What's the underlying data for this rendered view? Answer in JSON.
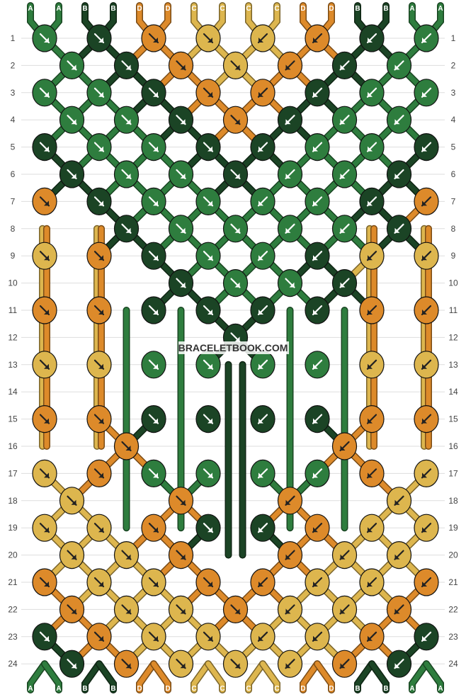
{
  "colors": {
    "A": "#2e7d3e",
    "B": "#1b4425",
    "C": "#ddb64e",
    "D": "#dd8a2a"
  },
  "strands": [
    "A",
    "A",
    "B",
    "B",
    "D",
    "D",
    "C",
    "C",
    "C",
    "C",
    "D",
    "D",
    "B",
    "B",
    "A",
    "A"
  ],
  "rows": [
    "1",
    "2",
    "3",
    "4",
    "5",
    "6",
    "7",
    "8",
    "9",
    "10",
    "11",
    "12",
    "13",
    "14",
    "15",
    "16",
    "17",
    "18",
    "19",
    "20",
    "21",
    "22",
    "23",
    "24"
  ],
  "watermark": "BRACELETBOOK.COM",
  "knots": [
    [
      [
        "A",
        "r"
      ],
      [
        "B",
        "r"
      ],
      [
        "D",
        "r"
      ],
      [
        "C",
        "r"
      ],
      [
        "C",
        "l"
      ],
      [
        "D",
        "l"
      ],
      [
        "B",
        "l"
      ],
      [
        "A",
        "l"
      ]
    ],
    [
      [
        "A",
        "r"
      ],
      [
        "B",
        "r"
      ],
      [
        "D",
        "r"
      ],
      [
        "C",
        "r"
      ],
      [
        "D",
        "l"
      ],
      [
        "B",
        "l"
      ],
      [
        "A",
        "l"
      ]
    ],
    [
      [
        "A",
        "r"
      ],
      [
        "A",
        "r"
      ],
      [
        "B",
        "r"
      ],
      [
        "D",
        "r"
      ],
      [
        "D",
        "l"
      ],
      [
        "B",
        "l"
      ],
      [
        "A",
        "l"
      ],
      [
        "A",
        "l"
      ]
    ],
    [
      [
        "A",
        "r"
      ],
      [
        "A",
        "r"
      ],
      [
        "B",
        "r"
      ],
      [
        "D",
        "r"
      ],
      [
        "B",
        "l"
      ],
      [
        "A",
        "l"
      ],
      [
        "A",
        "l"
      ]
    ],
    [
      [
        "B",
        "r"
      ],
      [
        "A",
        "r"
      ],
      [
        "A",
        "r"
      ],
      [
        "B",
        "r"
      ],
      [
        "B",
        "l"
      ],
      [
        "A",
        "l"
      ],
      [
        "A",
        "l"
      ],
      [
        "B",
        "l"
      ]
    ],
    [
      [
        "B",
        "r"
      ],
      [
        "A",
        "r"
      ],
      [
        "A",
        "r"
      ],
      [
        "B",
        "r"
      ],
      [
        "A",
        "l"
      ],
      [
        "A",
        "l"
      ],
      [
        "B",
        "l"
      ]
    ],
    [
      [
        "D",
        "r"
      ],
      [
        "B",
        "r"
      ],
      [
        "A",
        "r"
      ],
      [
        "A",
        "r"
      ],
      [
        "A",
        "l"
      ],
      [
        "A",
        "l"
      ],
      [
        "B",
        "l"
      ],
      [
        "D",
        "l"
      ]
    ],
    [
      [
        "B",
        "r"
      ],
      [
        "A",
        "r"
      ],
      [
        "A",
        "r"
      ],
      [
        "A",
        "l"
      ],
      [
        "A",
        "l"
      ],
      [
        "B",
        "l"
      ]
    ],
    [
      [
        "C",
        "r"
      ],
      [
        "D",
        "r"
      ],
      [
        "B",
        "r"
      ],
      [
        "A",
        "r"
      ],
      [
        "A",
        "l"
      ],
      [
        "B",
        "l"
      ],
      [
        "C",
        "l"
      ],
      [
        "C",
        "l"
      ]
    ],
    [
      [
        "B",
        "r"
      ],
      [
        "A",
        "r"
      ],
      [
        "A",
        "r"
      ],
      [
        "B",
        "l"
      ]
    ],
    [
      [
        "D",
        "r"
      ],
      [
        "D",
        "r"
      ],
      [
        "B",
        "r"
      ],
      [
        "B",
        "r"
      ],
      [
        "B",
        "l"
      ],
      [
        "B",
        "l"
      ],
      [
        "D",
        "l"
      ],
      [
        "D",
        "l"
      ]
    ],
    [
      [
        "B",
        "r"
      ]
    ],
    [
      [
        "C",
        "r"
      ],
      [
        "C",
        "r"
      ],
      [
        "A",
        "r"
      ],
      [
        "A",
        "r"
      ],
      [
        "A",
        "l"
      ],
      [
        "A",
        "l"
      ],
      [
        "C",
        "l"
      ],
      [
        "C",
        "l"
      ]
    ],
    [],
    [
      [
        "D",
        "r"
      ],
      [
        "D",
        "r"
      ],
      [
        "B",
        "r"
      ],
      [
        "B",
        "r"
      ],
      [
        "B",
        "l"
      ],
      [
        "B",
        "l"
      ],
      [
        "D",
        "l"
      ],
      [
        "D",
        "l"
      ]
    ],
    [
      [
        "D",
        "r"
      ],
      [
        "D",
        "l"
      ]
    ],
    [
      [
        "C",
        "r"
      ],
      [
        "D",
        "r"
      ],
      [
        "A",
        "r"
      ],
      [
        "A",
        "r"
      ],
      [
        "A",
        "l"
      ],
      [
        "A",
        "l"
      ],
      [
        "D",
        "l"
      ],
      [
        "C",
        "l"
      ]
    ],
    [
      [
        "C",
        "r"
      ],
      [
        "D",
        "r"
      ],
      [
        "D",
        "l"
      ],
      [
        "C",
        "l"
      ]
    ],
    [
      [
        "C",
        "r"
      ],
      [
        "C",
        "r"
      ],
      [
        "D",
        "r"
      ],
      [
        "B",
        "r"
      ],
      [
        "B",
        "l"
      ],
      [
        "D",
        "l"
      ],
      [
        "C",
        "l"
      ],
      [
        "C",
        "l"
      ]
    ],
    [
      [
        "C",
        "r"
      ],
      [
        "C",
        "r"
      ],
      [
        "D",
        "r"
      ],
      [
        "D",
        "l"
      ],
      [
        "C",
        "l"
      ],
      [
        "C",
        "l"
      ]
    ],
    [
      [
        "D",
        "r"
      ],
      [
        "C",
        "r"
      ],
      [
        "C",
        "r"
      ],
      [
        "D",
        "r"
      ],
      [
        "D",
        "l"
      ],
      [
        "C",
        "l"
      ],
      [
        "C",
        "l"
      ],
      [
        "D",
        "l"
      ]
    ],
    [
      [
        "D",
        "r"
      ],
      [
        "C",
        "r"
      ],
      [
        "C",
        "r"
      ],
      [
        "D",
        "r"
      ],
      [
        "C",
        "l"
      ],
      [
        "C",
        "l"
      ],
      [
        "D",
        "l"
      ]
    ],
    [
      [
        "B",
        "r"
      ],
      [
        "D",
        "r"
      ],
      [
        "C",
        "r"
      ],
      [
        "C",
        "r"
      ],
      [
        "C",
        "l"
      ],
      [
        "C",
        "l"
      ],
      [
        "D",
        "l"
      ],
      [
        "B",
        "l"
      ]
    ],
    [
      [
        "B",
        "r"
      ],
      [
        "D",
        "r"
      ],
      [
        "C",
        "r"
      ],
      [
        "C",
        "r"
      ],
      [
        "C",
        "l"
      ],
      [
        "D",
        "l"
      ],
      [
        "B",
        "l"
      ]
    ]
  ]
}
